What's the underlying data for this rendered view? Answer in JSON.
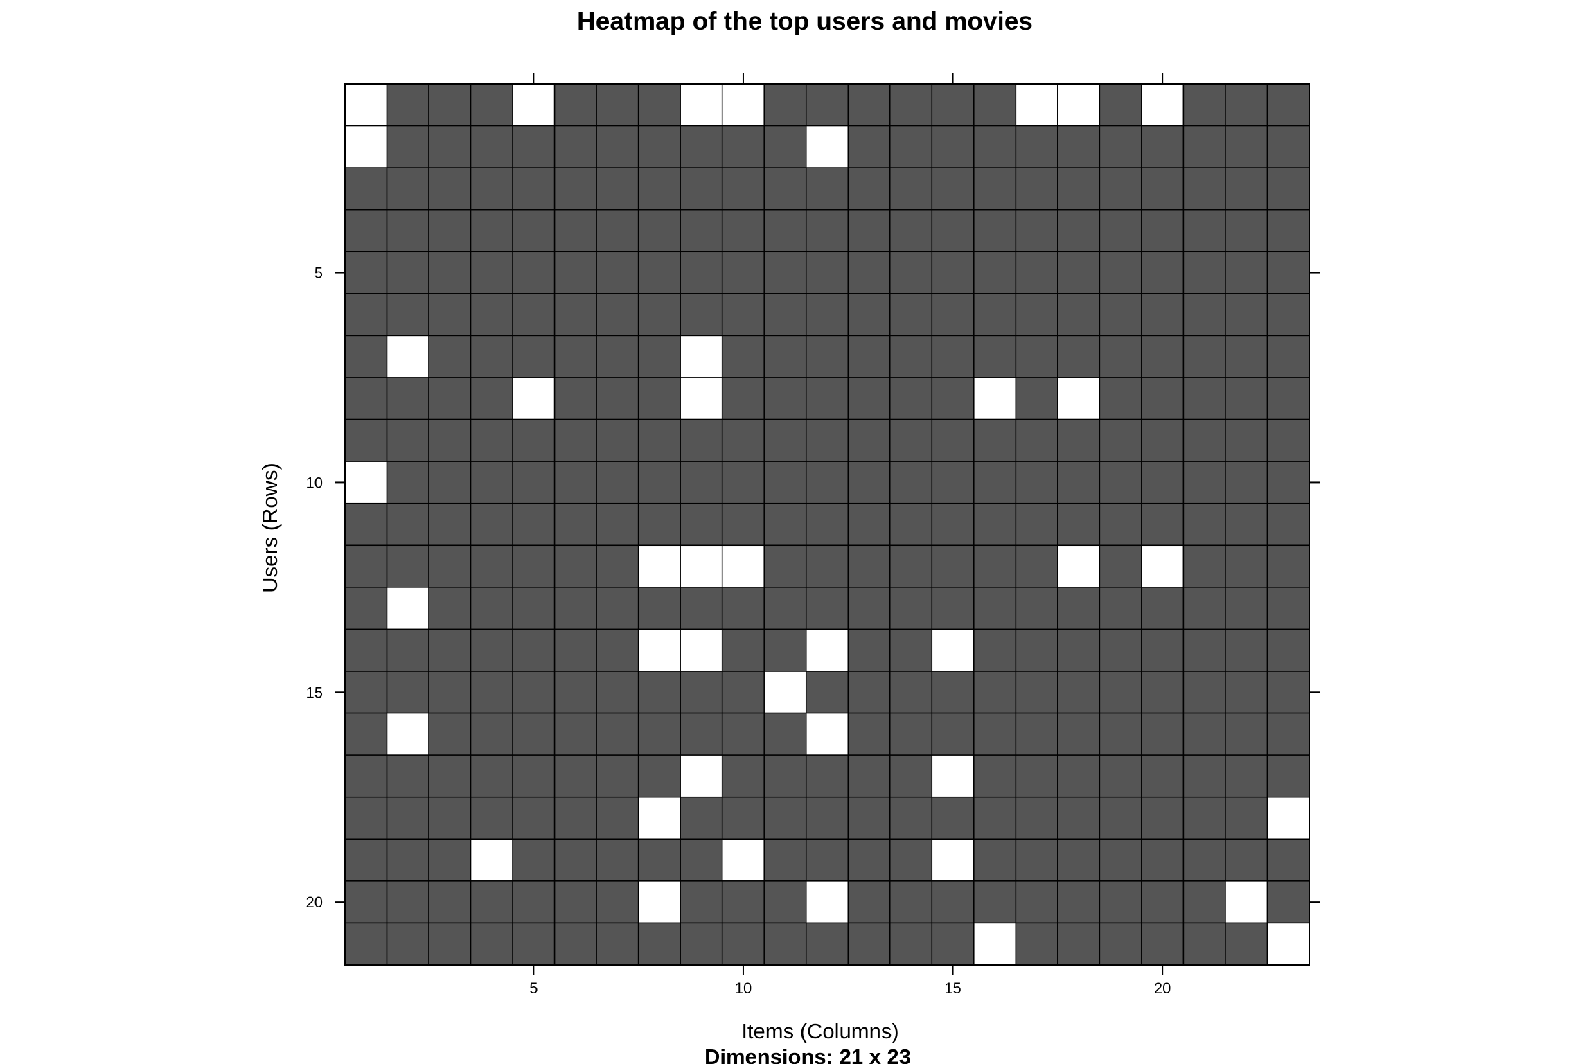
{
  "chart_data": {
    "type": "heatmap",
    "title": "Heatmap of the top users and movies",
    "xlabel": "Items (Columns)",
    "ylabel": "Users (Rows)",
    "subtitle": "Dimensions: 21 x 23",
    "n_rows": 21,
    "n_cols": 23,
    "x_ticks": [
      5,
      10,
      15,
      20
    ],
    "y_ticks": [
      5,
      10,
      15,
      20
    ],
    "x_tick_labels": [
      "5",
      "10",
      "15",
      "20"
    ],
    "y_tick_labels": [
      "5",
      "10",
      "15",
      "20"
    ],
    "colors": {
      "filled": "#555555",
      "empty": "#ffffff",
      "grid": "#000000"
    },
    "legend": "none",
    "empty_cells": [
      [
        1,
        1
      ],
      [
        1,
        5
      ],
      [
        1,
        9
      ],
      [
        1,
        10
      ],
      [
        1,
        17
      ],
      [
        1,
        18
      ],
      [
        1,
        20
      ],
      [
        2,
        1
      ],
      [
        2,
        12
      ],
      [
        7,
        2
      ],
      [
        7,
        9
      ],
      [
        8,
        5
      ],
      [
        8,
        9
      ],
      [
        8,
        16
      ],
      [
        8,
        18
      ],
      [
        10,
        1
      ],
      [
        12,
        8
      ],
      [
        12,
        9
      ],
      [
        12,
        10
      ],
      [
        12,
        18
      ],
      [
        12,
        20
      ],
      [
        13,
        2
      ],
      [
        14,
        8
      ],
      [
        14,
        9
      ],
      [
        14,
        12
      ],
      [
        14,
        15
      ],
      [
        15,
        11
      ],
      [
        16,
        2
      ],
      [
        16,
        12
      ],
      [
        17,
        9
      ],
      [
        17,
        15
      ],
      [
        18,
        8
      ],
      [
        18,
        23
      ],
      [
        19,
        4
      ],
      [
        19,
        10
      ],
      [
        19,
        15
      ],
      [
        20,
        8
      ],
      [
        20,
        12
      ],
      [
        20,
        22
      ],
      [
        21,
        16
      ],
      [
        21,
        23
      ]
    ]
  }
}
